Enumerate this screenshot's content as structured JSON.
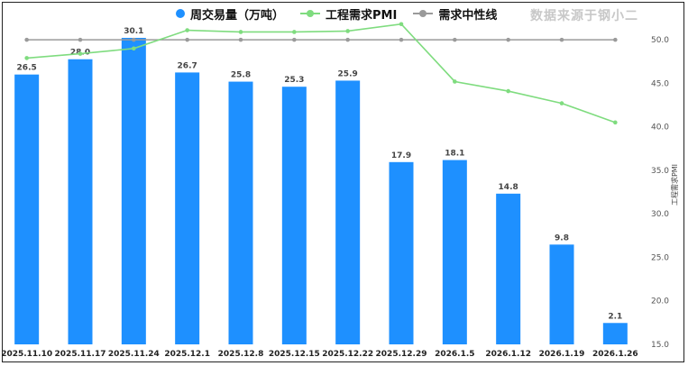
{
  "legend": {
    "bar_label": "周交易量（万吨）",
    "pmi_label": "工程需求PMI",
    "neutral_label": "需求中性线"
  },
  "source_text": "数据来源于钢小二",
  "colors": {
    "bar": "#1e90ff",
    "pmi": "#7fdc7f",
    "neutral": "#9a9a9a"
  },
  "chart_data": {
    "type": "bar",
    "categories": [
      "2025.11.10",
      "2025.11.17",
      "2025.11.24",
      "2025.12.1",
      "2025.12.8",
      "2025.12.15",
      "2025.12.22",
      "2025.12.29",
      "2026.1.5",
      "2026.1.12",
      "2026.1.19",
      "2026.1.26"
    ],
    "series": [
      {
        "name": "周交易量（万吨）",
        "type": "bar",
        "axis": "left",
        "values": [
          26.5,
          28.0,
          30.1,
          26.7,
          25.8,
          25.3,
          25.9,
          17.9,
          18.1,
          14.8,
          9.8,
          2.1
        ]
      },
      {
        "name": "工程需求PMI",
        "type": "line",
        "axis": "right",
        "values": [
          47.9,
          48.4,
          49.0,
          51.1,
          50.9,
          50.9,
          51.0,
          51.8,
          45.2,
          44.1,
          42.7,
          40.5
        ]
      },
      {
        "name": "需求中性线",
        "type": "line",
        "axis": "right",
        "values": [
          50,
          50,
          50,
          50,
          50,
          50,
          50,
          50,
          50,
          50,
          50,
          50
        ]
      }
    ],
    "y2label": "工程需求PMI",
    "y2lim": [
      15,
      52.5
    ],
    "y2ticks": [
      15.0,
      20.0,
      25.0,
      30.0,
      35.0,
      40.0,
      45.0,
      50.0
    ],
    "grid": false,
    "legend_position": "top"
  }
}
